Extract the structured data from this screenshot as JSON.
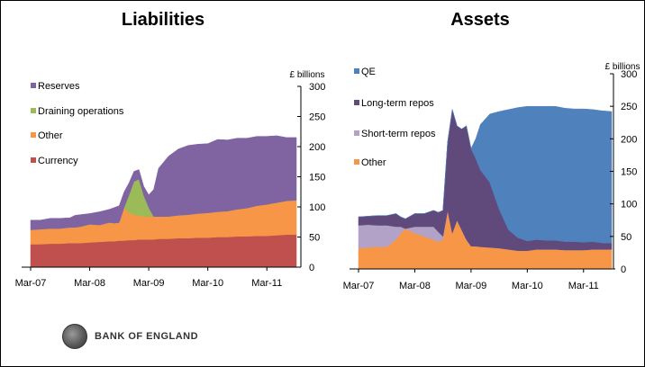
{
  "slide": {
    "logo_text": "BANK OF ENGLAND"
  },
  "chart_data": [
    {
      "type": "area",
      "stacked": true,
      "title": "Liabilities",
      "unit_label": "£ billions",
      "ylim": [
        0,
        300
      ],
      "yticks": [
        0,
        50,
        100,
        150,
        200,
        250,
        300
      ],
      "xlim": [
        0,
        54
      ],
      "x_tick_labels": [
        "Mar-07",
        "Mar-08",
        "Mar-09",
        "Mar-10",
        "Mar-11"
      ],
      "x_tick_positions": [
        0,
        12,
        24,
        36,
        48
      ],
      "x": [
        0,
        2,
        4,
        6,
        8,
        9,
        10,
        12,
        14,
        16,
        17,
        18,
        19,
        20,
        21,
        22,
        23,
        24,
        25,
        26,
        28,
        30,
        32,
        34,
        36,
        38,
        40,
        42,
        44,
        46,
        48,
        50,
        52,
        54
      ],
      "legend": [
        "Reserves",
        "Draining operations",
        "Other",
        "Currency"
      ],
      "series": [
        {
          "name": "Currency",
          "color": "#c0504d",
          "values": [
            38,
            38,
            39,
            39,
            40,
            40,
            40,
            41,
            42,
            43,
            43,
            44,
            44,
            45,
            45,
            46,
            46,
            46,
            46,
            47,
            47,
            48,
            48,
            49,
            49,
            50,
            50,
            51,
            51,
            52,
            52,
            53,
            54,
            54
          ]
        },
        {
          "name": "Other",
          "color": "#f79646",
          "values": [
            24,
            25,
            25,
            25,
            26,
            26,
            27,
            30,
            28,
            31,
            30,
            30,
            55,
            45,
            42,
            40,
            38,
            38,
            38,
            37,
            37,
            38,
            39,
            40,
            41,
            42,
            43,
            45,
            47,
            50,
            52,
            54,
            56,
            57
          ]
        },
        {
          "name": "Draining operations",
          "color": "#9bbb59",
          "values": [
            0,
            0,
            0,
            0,
            0,
            0,
            0,
            0,
            0,
            0,
            0,
            0,
            0,
            30,
            55,
            60,
            35,
            15,
            0,
            0,
            0,
            0,
            0,
            0,
            0,
            0,
            0,
            0,
            0,
            0,
            0,
            0,
            0,
            0
          ]
        },
        {
          "name": "Reserves",
          "color": "#8064a2",
          "values": [
            16,
            15,
            17,
            17,
            16,
            20,
            20,
            18,
            22,
            22,
            26,
            28,
            26,
            20,
            17,
            16,
            15,
            21,
            45,
            80,
            100,
            110,
            115,
            115,
            115,
            120,
            118,
            118,
            116,
            115,
            113,
            111,
            105,
            104
          ]
        }
      ]
    },
    {
      "type": "area",
      "stacked": true,
      "title": "Assets",
      "unit_label": "£ billions",
      "ylim": [
        0,
        300
      ],
      "yticks": [
        0,
        50,
        100,
        150,
        200,
        250,
        300
      ],
      "xlim": [
        0,
        54
      ],
      "x_tick_labels": [
        "Mar-07",
        "Mar-08",
        "Mar-09",
        "Mar-10",
        "Mar-11"
      ],
      "x_tick_positions": [
        0,
        12,
        24,
        36,
        48
      ],
      "x": [
        0,
        2,
        4,
        6,
        8,
        9,
        10,
        12,
        14,
        16,
        17,
        18,
        19,
        20,
        21,
        22,
        23,
        24,
        25,
        26,
        28,
        30,
        32,
        34,
        36,
        38,
        40,
        42,
        44,
        46,
        48,
        50,
        52,
        54
      ],
      "legend": [
        "QE",
        "Long-term repos",
        "Short-term repos",
        "Other"
      ],
      "series": [
        {
          "name": "Other",
          "color": "#f79646",
          "values": [
            32,
            33,
            34,
            34,
            45,
            55,
            62,
            55,
            50,
            45,
            42,
            45,
            90,
            55,
            75,
            60,
            45,
            35,
            35,
            34,
            33,
            32,
            30,
            28,
            28,
            30,
            30,
            30,
            29,
            29,
            29,
            30,
            30,
            30
          ]
        },
        {
          "name": "Short-term repos",
          "color": "#b3a2c7",
          "values": [
            35,
            35,
            33,
            33,
            20,
            10,
            0,
            10,
            15,
            20,
            15,
            5,
            0,
            0,
            0,
            0,
            0,
            0,
            0,
            0,
            0,
            0,
            0,
            0,
            0,
            0,
            0,
            0,
            0,
            0,
            0,
            0,
            0,
            0
          ]
        },
        {
          "name": "Long-term repos",
          "color": "#604a7b",
          "values": [
            13,
            13,
            15,
            15,
            20,
            15,
            15,
            20,
            20,
            25,
            30,
            40,
            105,
            190,
            145,
            155,
            175,
            150,
            135,
            118,
            100,
            60,
            30,
            20,
            15,
            15,
            14,
            14,
            13,
            13,
            12,
            12,
            10,
            10
          ]
        },
        {
          "name": "QE",
          "color": "#4f81bd",
          "values": [
            0,
            0,
            0,
            0,
            0,
            0,
            0,
            0,
            0,
            0,
            0,
            0,
            0,
            0,
            0,
            0,
            0,
            0,
            30,
            70,
            105,
            150,
            185,
            200,
            207,
            205,
            206,
            206,
            205,
            204,
            205,
            203,
            203,
            202
          ]
        }
      ]
    }
  ]
}
